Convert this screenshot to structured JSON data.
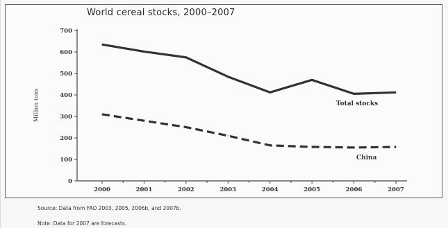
{
  "chart_data": {
    "type": "line",
    "title": "World cereal stocks, 2000–2007",
    "ylabel": "Million tons",
    "xlabel": "",
    "categories": [
      "2000",
      "2001",
      "2002",
      "2003",
      "2004",
      "2005",
      "2006",
      "2007"
    ],
    "yticks": [
      "0",
      "100",
      "200",
      "300",
      "400",
      "500",
      "600",
      "700"
    ],
    "ylim": [
      0,
      700
    ],
    "grid": false,
    "legend": "none",
    "series": [
      {
        "name": "Total stocks",
        "values": [
          635,
          602,
          575,
          485,
          412,
          470,
          405,
          412
        ],
        "style": "solid",
        "color": "#333333"
      },
      {
        "name": "China",
        "values": [
          310,
          280,
          250,
          210,
          165,
          158,
          155,
          158
        ],
        "style": "dashed",
        "color": "#333333"
      }
    ],
    "notes": {
      "source": "Source: Data from FAO 2003, 2005, 2006b, and 2007b.",
      "note": "Note: Data for 2007 are forecasts."
    }
  }
}
